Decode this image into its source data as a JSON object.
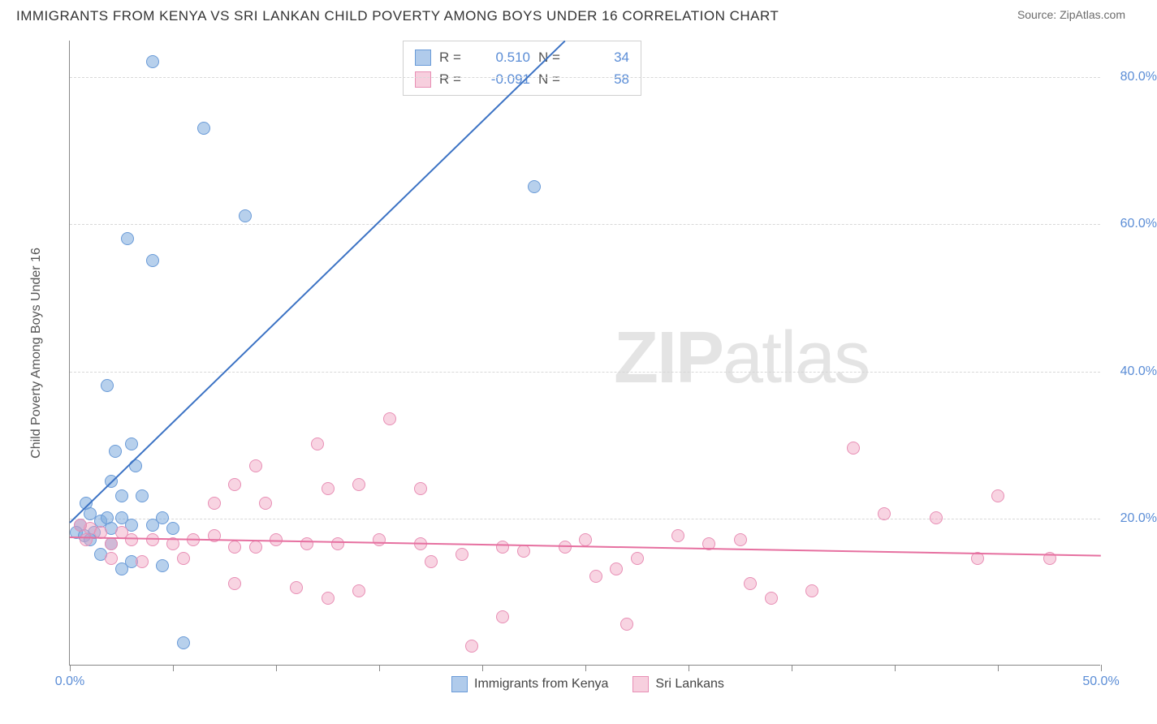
{
  "title": "IMMIGRANTS FROM KENYA VS SRI LANKAN CHILD POVERTY AMONG BOYS UNDER 16 CORRELATION CHART",
  "source": "Source: ZipAtlas.com",
  "ylabel": "Child Poverty Among Boys Under 16",
  "watermark_bold": "ZIP",
  "watermark_light": "atlas",
  "chart": {
    "type": "scatter",
    "xlim": [
      0,
      50
    ],
    "ylim": [
      0,
      85
    ],
    "x_ticks": [
      0,
      5,
      10,
      15,
      20,
      25,
      30,
      35,
      40,
      45,
      50
    ],
    "x_tick_labels": {
      "0": "0.0%",
      "50": "50.0%"
    },
    "y_gridlines": [
      20,
      40,
      60,
      80
    ],
    "y_tick_labels": {
      "20": "20.0%",
      "40": "40.0%",
      "60": "60.0%",
      "80": "80.0%"
    },
    "background_color": "#ffffff",
    "grid_color": "#d8d8d8",
    "axis_color": "#888888",
    "tick_label_color": "#5b8dd6",
    "series": [
      {
        "name": "Immigrants from Kenya",
        "color_fill": "rgba(124,169,221,0.55)",
        "color_stroke": "#6a9bd8",
        "trend_color": "#3b72c4",
        "R": "0.510",
        "N": "34",
        "trendline": {
          "x0": 0,
          "y0": 19.5,
          "x1": 24,
          "y1": 85
        },
        "points": [
          [
            4.0,
            82.0
          ],
          [
            6.5,
            73.0
          ],
          [
            22.5,
            65.0
          ],
          [
            8.5,
            61.0
          ],
          [
            2.8,
            58.0
          ],
          [
            4.0,
            55.0
          ],
          [
            1.8,
            38.0
          ],
          [
            2.2,
            29.0
          ],
          [
            3.0,
            30.0
          ],
          [
            3.2,
            27.0
          ],
          [
            2.0,
            25.0
          ],
          [
            0.8,
            22.0
          ],
          [
            2.5,
            23.0
          ],
          [
            3.5,
            23.0
          ],
          [
            1.2,
            18.0
          ],
          [
            0.5,
            19.0
          ],
          [
            1.5,
            19.5
          ],
          [
            2.0,
            18.5
          ],
          [
            0.3,
            18.0
          ],
          [
            0.7,
            17.5
          ],
          [
            1.0,
            17.0
          ],
          [
            2.0,
            16.5
          ],
          [
            1.8,
            20.0
          ],
          [
            2.5,
            20.0
          ],
          [
            3.0,
            19.0
          ],
          [
            4.0,
            19.0
          ],
          [
            4.5,
            20.0
          ],
          [
            5.0,
            18.5
          ],
          [
            1.5,
            15.0
          ],
          [
            3.0,
            14.0
          ],
          [
            2.5,
            13.0
          ],
          [
            4.5,
            13.5
          ],
          [
            1.0,
            20.5
          ],
          [
            5.5,
            3.0
          ]
        ]
      },
      {
        "name": "Sri Lankans",
        "color_fill": "rgba(240,160,190,0.45)",
        "color_stroke": "#e88fb5",
        "trend_color": "#e670a0",
        "R": "-0.091",
        "N": "58",
        "trendline": {
          "x0": 0,
          "y0": 17.5,
          "x1": 50,
          "y1": 15.0
        },
        "points": [
          [
            15.5,
            33.5
          ],
          [
            12.0,
            30.0
          ],
          [
            38.0,
            29.5
          ],
          [
            45.0,
            23.0
          ],
          [
            9.0,
            27.0
          ],
          [
            8.0,
            24.5
          ],
          [
            12.5,
            24.0
          ],
          [
            17.0,
            24.0
          ],
          [
            14.0,
            24.5
          ],
          [
            9.5,
            22.0
          ],
          [
            7.0,
            22.0
          ],
          [
            42.0,
            20.0
          ],
          [
            39.5,
            20.5
          ],
          [
            1.0,
            18.5
          ],
          [
            0.5,
            19.0
          ],
          [
            0.8,
            17.0
          ],
          [
            1.5,
            18.0
          ],
          [
            2.0,
            16.5
          ],
          [
            2.5,
            18.0
          ],
          [
            3.0,
            17.0
          ],
          [
            4.0,
            17.0
          ],
          [
            5.0,
            16.5
          ],
          [
            6.0,
            17.0
          ],
          [
            7.0,
            17.5
          ],
          [
            8.0,
            16.0
          ],
          [
            9.0,
            16.0
          ],
          [
            10.0,
            17.0
          ],
          [
            11.5,
            16.5
          ],
          [
            13.0,
            16.5
          ],
          [
            15.0,
            17.0
          ],
          [
            17.0,
            16.5
          ],
          [
            17.5,
            14.0
          ],
          [
            19.0,
            15.0
          ],
          [
            21.0,
            16.0
          ],
          [
            22.0,
            15.5
          ],
          [
            24.0,
            16.0
          ],
          [
            25.0,
            17.0
          ],
          [
            25.5,
            12.0
          ],
          [
            26.5,
            13.0
          ],
          [
            27.5,
            14.5
          ],
          [
            29.5,
            17.5
          ],
          [
            31.0,
            16.5
          ],
          [
            33.0,
            11.0
          ],
          [
            34.0,
            9.0
          ],
          [
            36.0,
            10.0
          ],
          [
            32.5,
            17.0
          ],
          [
            44.0,
            14.5
          ],
          [
            47.5,
            14.5
          ],
          [
            14.0,
            10.0
          ],
          [
            11.0,
            10.5
          ],
          [
            8.0,
            11.0
          ],
          [
            5.5,
            14.5
          ],
          [
            3.5,
            14.0
          ],
          [
            2.0,
            14.5
          ],
          [
            21.0,
            6.5
          ],
          [
            19.5,
            2.5
          ],
          [
            27.0,
            5.5
          ],
          [
            12.5,
            9.0
          ]
        ]
      }
    ]
  },
  "legend_top_labels": {
    "R": "R =",
    "N": "N ="
  },
  "legend_bottom": [
    "Immigrants from Kenya",
    "Sri Lankans"
  ]
}
